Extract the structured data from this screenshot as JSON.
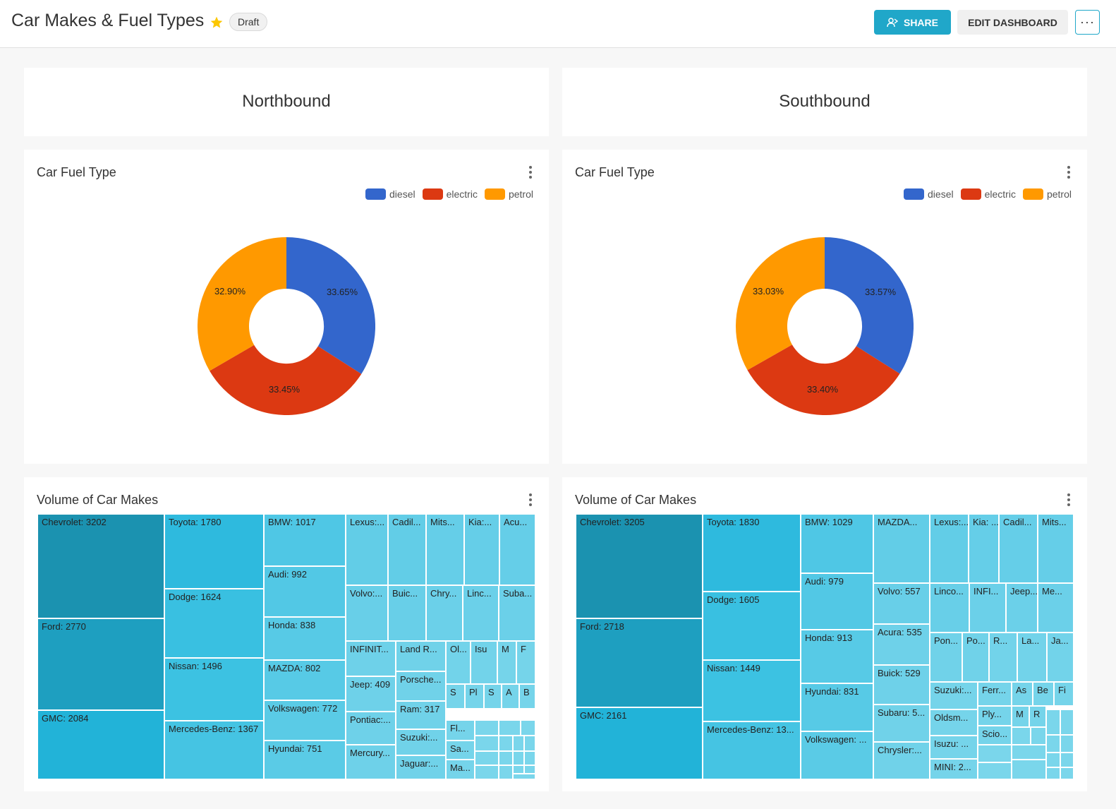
{
  "header": {
    "title": "Car Makes & Fuel Types",
    "badge": "Draft",
    "share_label": "SHARE",
    "edit_label": "EDIT DASHBOARD",
    "more_label": "···"
  },
  "colors": {
    "diesel": "#3366cc",
    "electric": "#dc3912",
    "petrol": "#ff9900",
    "accent": "#20a7c9"
  },
  "sections": [
    {
      "heading": "Northbound",
      "pie": {
        "title": "Car Fuel Type",
        "legend": [
          "diesel",
          "electric",
          "petrol"
        ],
        "labels": [
          "33.65%",
          "33.45%",
          "32.90%"
        ]
      },
      "treemap": {
        "title": "Volume of Car Makes",
        "cells": [
          {
            "label": "Chevrolet: 3202",
            "value": 3202
          },
          {
            "label": "Ford: 2770",
            "value": 2770
          },
          {
            "label": "GMC: 2084",
            "value": 2084
          },
          {
            "label": "Toyota: 1780",
            "value": 1780
          },
          {
            "label": "Dodge: 1624",
            "value": 1624
          },
          {
            "label": "Nissan: 1496",
            "value": 1496
          },
          {
            "label": "Mercedes-Benz: 1367",
            "value": 1367
          },
          {
            "label": "BMW: 1017",
            "value": 1017
          },
          {
            "label": "Audi: 992",
            "value": 992
          },
          {
            "label": "Honda: 838",
            "value": 838
          },
          {
            "label": "MAZDA: 802",
            "value": 802
          },
          {
            "label": "Volkswagen: 772",
            "value": 772
          },
          {
            "label": "Hyundai: 751",
            "value": 751
          },
          {
            "label": "Lexus:..."
          },
          {
            "label": "Cadil..."
          },
          {
            "label": "Mits..."
          },
          {
            "label": "Kia:..."
          },
          {
            "label": "Acu..."
          },
          {
            "label": "Volvo:..."
          },
          {
            "label": "Buic..."
          },
          {
            "label": "Chry..."
          },
          {
            "label": "Linc..."
          },
          {
            "label": "Suba..."
          },
          {
            "label": "INFINIT..."
          },
          {
            "label": "Land R..."
          },
          {
            "label": "Ol..."
          },
          {
            "label": "Isu"
          },
          {
            "label": "M"
          },
          {
            "label": "F"
          },
          {
            "label": "Jeep: 409",
            "value": 409
          },
          {
            "label": "Porsche..."
          },
          {
            "label": "S"
          },
          {
            "label": "Pl"
          },
          {
            "label": "S"
          },
          {
            "label": "A"
          },
          {
            "label": "B"
          },
          {
            "label": "Ram: 317",
            "value": 317
          },
          {
            "label": "Pontiac:..."
          },
          {
            "label": "Suzuki:..."
          },
          {
            "label": "Fl..."
          },
          {
            "label": "Mercury..."
          },
          {
            "label": "Sa..."
          },
          {
            "label": "Jaguar:..."
          },
          {
            "label": "Ma..."
          }
        ]
      }
    },
    {
      "heading": "Southbound",
      "pie": {
        "title": "Car Fuel Type",
        "legend": [
          "diesel",
          "electric",
          "petrol"
        ],
        "labels": [
          "33.57%",
          "33.40%",
          "33.03%"
        ]
      },
      "treemap": {
        "title": "Volume of Car Makes",
        "cells": [
          {
            "label": "Chevrolet: 3205",
            "value": 3205
          },
          {
            "label": "Ford: 2718",
            "value": 2718
          },
          {
            "label": "GMC: 2161",
            "value": 2161
          },
          {
            "label": "Toyota: 1830",
            "value": 1830
          },
          {
            "label": "Dodge: 1605",
            "value": 1605
          },
          {
            "label": "Nissan: 1449",
            "value": 1449
          },
          {
            "label": "Mercedes-Benz: 13..."
          },
          {
            "label": "BMW: 1029",
            "value": 1029
          },
          {
            "label": "Audi: 979",
            "value": 979
          },
          {
            "label": "Honda: 913",
            "value": 913
          },
          {
            "label": "Hyundai: 831",
            "value": 831
          },
          {
            "label": "Volkswagen: ..."
          },
          {
            "label": "MAZDA..."
          },
          {
            "label": "Lexus:..."
          },
          {
            "label": "Kia: ..."
          },
          {
            "label": "Cadil..."
          },
          {
            "label": "Mits..."
          },
          {
            "label": "Volvo: 557",
            "value": 557
          },
          {
            "label": "Linco..."
          },
          {
            "label": "INFI..."
          },
          {
            "label": "Jeep..."
          },
          {
            "label": "Me..."
          },
          {
            "label": "Acura: 535",
            "value": 535
          },
          {
            "label": "Pon..."
          },
          {
            "label": "Po..."
          },
          {
            "label": "R..."
          },
          {
            "label": "La..."
          },
          {
            "label": "Ja..."
          },
          {
            "label": "Buick: 529",
            "value": 529
          },
          {
            "label": "Suzuki:..."
          },
          {
            "label": "Ferr..."
          },
          {
            "label": "As"
          },
          {
            "label": "Be"
          },
          {
            "label": "Fi"
          },
          {
            "label": "Subaru: 5..."
          },
          {
            "label": "Oldsm..."
          },
          {
            "label": "Ply..."
          },
          {
            "label": "M"
          },
          {
            "label": "R"
          },
          {
            "label": "Scio..."
          },
          {
            "label": "Chrysler:..."
          },
          {
            "label": "Isuzu: ..."
          },
          {
            "label": "MINI: 2..."
          }
        ]
      }
    }
  ]
}
